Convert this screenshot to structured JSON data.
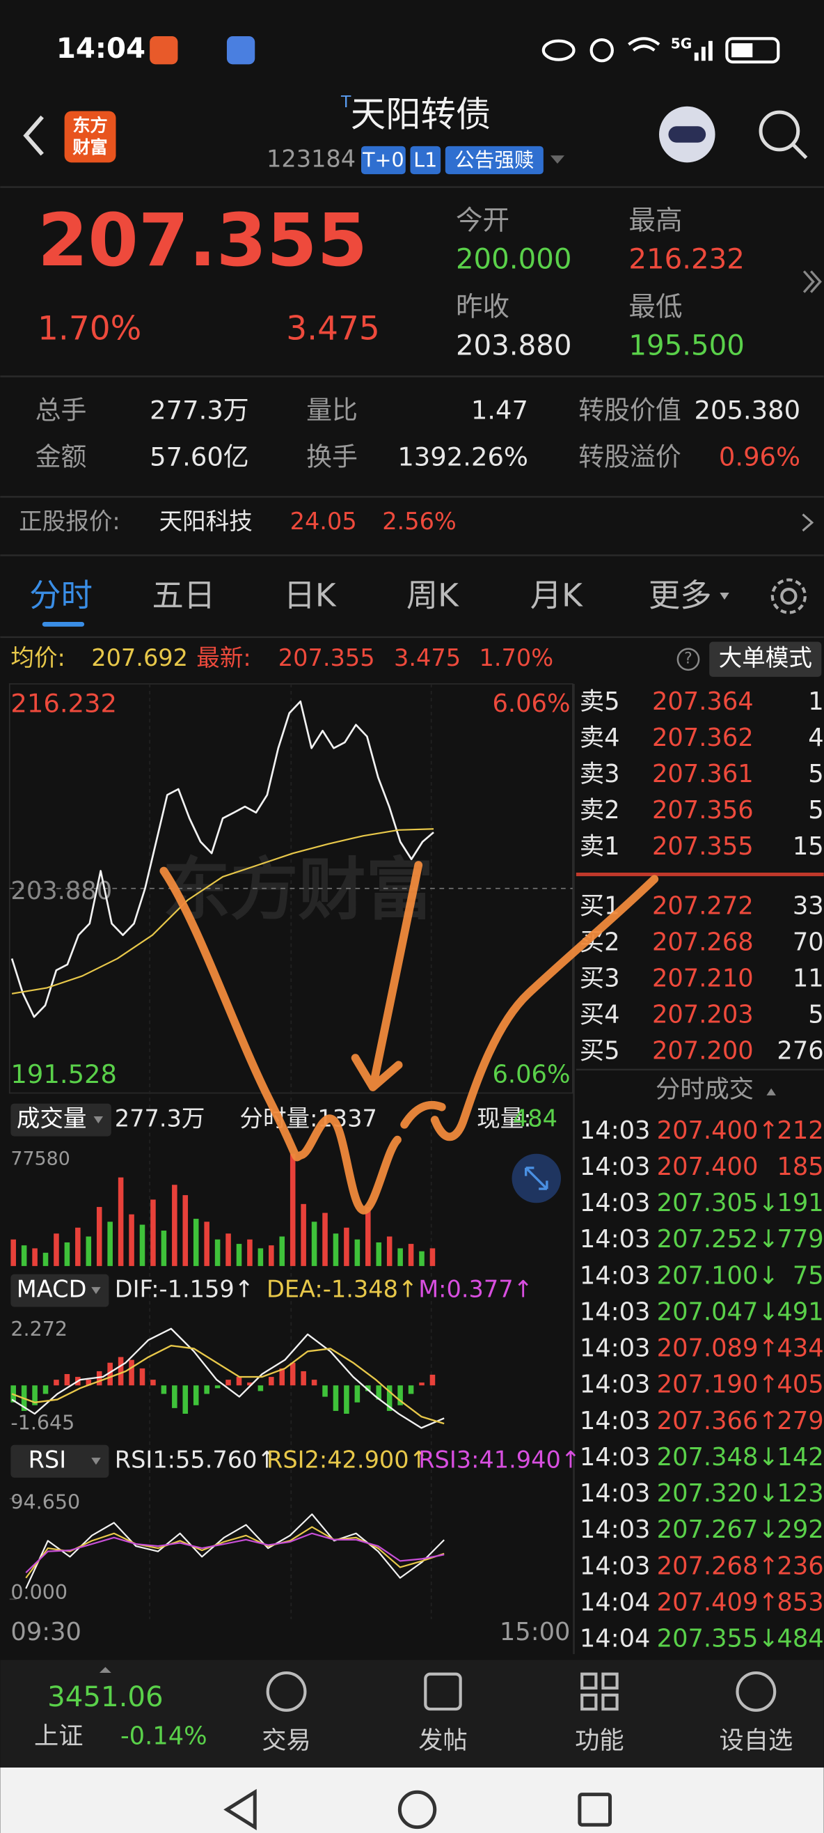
{
  "status_bar": {
    "time": "14:04",
    "network": "5G"
  },
  "header": {
    "logo": [
      "东方",
      "财富"
    ],
    "title_mark": "T",
    "title": "天阳转债",
    "code": "123184",
    "tags": [
      "T+0",
      "L1",
      "公告强赎"
    ]
  },
  "quote": {
    "price": "207.355",
    "change_pct": "1.70%",
    "change": "3.475",
    "stats": [
      {
        "label": "今开",
        "value": "200.000"
      },
      {
        "label": "最高",
        "value": "216.232"
      },
      {
        "label": "昨收",
        "value": "203.880"
      },
      {
        "label": "最低",
        "value": "195.500"
      }
    ],
    "details": [
      {
        "label": "总手",
        "value": "277.3万"
      },
      {
        "label": "量比",
        "value": "1.47"
      },
      {
        "label": "转股价值",
        "value": "205.380"
      },
      {
        "label": "金额",
        "value": "57.60亿"
      },
      {
        "label": "换手",
        "value": "1392.26%"
      },
      {
        "label": "转股溢价",
        "value": "0.96%"
      }
    ],
    "stock": {
      "label": "正股报价:",
      "name": "天阳科技",
      "price": "24.05",
      "pct": "2.56%"
    }
  },
  "tabs": [
    "分时",
    "五日",
    "日K",
    "周K",
    "月K",
    "更多"
  ],
  "chart_header": {
    "avg_label": "均价:",
    "avg": "207.692",
    "latest_label": "最新:",
    "latest": "207.355",
    "change": "3.475",
    "pct": "1.70%",
    "mode": "大单模式"
  },
  "intraday": {
    "ylim": [
      191.528,
      216.232
    ],
    "prev_close": {
      "value": 203.88,
      "label": "203.880"
    },
    "pct_top": "6.06%",
    "pct_bottom": "6.06%",
    "watermark": "东方财富",
    "price_color": "#f2f2f2",
    "avg_color": "#e8c84a",
    "price": [
      199.39,
      197.14,
      195.65,
      196.39,
      198.64,
      199.01,
      200.89,
      201.63,
      205.0,
      201.63,
      200.89,
      201.63,
      203.88,
      206.87,
      209.87,
      210.24,
      208.37,
      206.87,
      206.13,
      208.37,
      208.74,
      209.12,
      208.74,
      209.87,
      212.86,
      215.11,
      215.86,
      212.86,
      213.98,
      212.86,
      213.24,
      214.36,
      213.61,
      210.99,
      209.12,
      206.87,
      205.75,
      206.87,
      207.47
    ],
    "avg": [
      197.14,
      197.52,
      198.27,
      199.39,
      200.89,
      203.13,
      204.63,
      205.38,
      206.13,
      206.73,
      207.25,
      207.62,
      207.69
    ]
  },
  "volume": {
    "label": "成交量",
    "total": "277.3万",
    "minute": "分时量:1337",
    "current_label": "现量:",
    "current": "484",
    "ylim": [
      0,
      77580
    ],
    "up_color": "#e8413a",
    "down_color": "#3fc23a",
    "up": [
      18000,
      null,
      12000,
      null,
      22000,
      null,
      26000,
      null,
      40000,
      null,
      60000,
      35000,
      null,
      45000,
      null,
      55000,
      48000,
      null,
      30000,
      null,
      22000,
      null,
      18000,
      null,
      14000,
      null,
      76000,
      42000,
      null,
      36000,
      null,
      26000,
      null,
      40000,
      null,
      20000,
      null,
      15000,
      null,
      12000
    ],
    "down": [
      null,
      14000,
      null,
      9000,
      null,
      16000,
      null,
      20000,
      null,
      30000,
      null,
      null,
      28000,
      null,
      24000,
      null,
      null,
      32000,
      null,
      18000,
      null,
      15000,
      null,
      12000,
      null,
      20000,
      null,
      null,
      30000,
      null,
      22000,
      null,
      18000,
      null,
      16000,
      null,
      12000,
      null,
      10000,
      null
    ]
  },
  "macd": {
    "label": "MACD",
    "dif": "DIF:-1.159↑",
    "dea": "DEA:-1.348↑",
    "m": "M:0.377↑",
    "ylim": [
      -1.645,
      2.272
    ],
    "up_color": "#e8413a",
    "down_color": "#3fc23a",
    "hist": [
      -0.6,
      -0.9,
      -0.7,
      -0.3,
      0.2,
      0.4,
      0.3,
      0.2,
      0.5,
      0.8,
      1.0,
      0.9,
      0.6,
      0.2,
      -0.3,
      -0.8,
      -1.0,
      -0.7,
      -0.3,
      -0.1,
      0.2,
      0.3,
      0.1,
      -0.2,
      0.3,
      0.6,
      0.8,
      0.5,
      0.2,
      -0.4,
      -0.9,
      -1.0,
      -0.6,
      -0.2,
      -0.5,
      -0.9,
      -0.7,
      -0.3,
      0.1,
      0.377
    ],
    "lines": [
      {
        "color": "#f2f2f2",
        "values": [
          -0.5,
          -1.0,
          -0.3,
          0.2,
          0.3,
          0.8,
          1.6,
          2.0,
          1.2,
          0.2,
          -0.4,
          0.4,
          0.9,
          1.8,
          1.2,
          0.3,
          -0.4,
          -1.0,
          -1.5,
          -1.159
        ]
      },
      {
        "color": "#e8c84a",
        "values": [
          -0.3,
          -0.6,
          -0.5,
          -0.1,
          0.2,
          0.5,
          1.0,
          1.4,
          1.3,
          0.8,
          0.3,
          0.3,
          0.6,
          1.2,
          1.3,
          0.8,
          0.2,
          -0.5,
          -1.1,
          -1.348
        ]
      }
    ]
  },
  "rsi": {
    "label": "RSI",
    "rsi1": "RSI1:55.760↑",
    "rsi2": "RSI2:42.900↑",
    "rsi3": "RSI3:41.940↑",
    "ylim": [
      0,
      94.65
    ],
    "yticks": [
      {
        "value": 94.65,
        "label": "94.650"
      },
      {
        "value": 0,
        "label": "0.000"
      }
    ],
    "lines": [
      {
        "color": "#f2f2f2",
        "values": [
          10,
          55,
          40,
          60,
          72,
          50,
          45,
          62,
          40,
          58,
          70,
          48,
          60,
          80,
          55,
          62,
          45,
          20,
          35,
          55.76
        ]
      },
      {
        "color": "#e8c84a",
        "values": [
          20,
          48,
          45,
          55,
          62,
          52,
          48,
          55,
          46,
          54,
          60,
          50,
          55,
          68,
          56,
          58,
          48,
          30,
          36,
          42.9
        ]
      },
      {
        "color": "#c84fd8",
        "values": [
          25,
          45,
          46,
          52,
          58,
          52,
          50,
          53,
          48,
          52,
          56,
          51,
          54,
          62,
          56,
          56,
          50,
          36,
          38,
          41.94
        ]
      }
    ]
  },
  "time_axis": [
    "09:30",
    "15:00"
  ],
  "order_book": {
    "sells": [
      {
        "label": "卖5",
        "price": "207.364",
        "volume": "1"
      },
      {
        "label": "卖4",
        "price": "207.362",
        "volume": "4"
      },
      {
        "label": "卖3",
        "price": "207.361",
        "volume": "5"
      },
      {
        "label": "卖2",
        "price": "207.356",
        "volume": "5"
      },
      {
        "label": "卖1",
        "price": "207.355",
        "volume": "15"
      }
    ],
    "buys": [
      {
        "label": "买1",
        "price": "207.272",
        "volume": "33"
      },
      {
        "label": "买2",
        "price": "207.268",
        "volume": "70"
      },
      {
        "label": "买3",
        "price": "207.210",
        "volume": "11"
      },
      {
        "label": "买4",
        "price": "207.203",
        "volume": "5"
      },
      {
        "label": "买5",
        "price": "207.200",
        "volume": "276"
      }
    ],
    "trades_title": "分时成交"
  },
  "trades": [
    {
      "time": "14:03",
      "price": "207.400↑",
      "volume": "212",
      "color": "#ee4a3c"
    },
    {
      "time": "14:03",
      "price": "207.400",
      "volume": "185",
      "color": "#ee4a3c"
    },
    {
      "time": "14:03",
      "price": "207.305↓",
      "volume": "191",
      "color": "#5ad14a"
    },
    {
      "time": "14:03",
      "price": "207.252↓",
      "volume": "779",
      "color": "#5ad14a"
    },
    {
      "time": "14:03",
      "price": "207.100↓",
      "volume": "75",
      "color": "#5ad14a"
    },
    {
      "time": "14:03",
      "price": "207.047↓",
      "volume": "491",
      "color": "#5ad14a"
    },
    {
      "time": "14:03",
      "price": "207.089↑",
      "volume": "434",
      "color": "#ee4a3c"
    },
    {
      "time": "14:03",
      "price": "207.190↑",
      "volume": "405",
      "color": "#ee4a3c"
    },
    {
      "time": "14:03",
      "price": "207.366↑",
      "volume": "279",
      "color": "#ee4a3c"
    },
    {
      "time": "14:03",
      "price": "207.348↓",
      "volume": "142",
      "color": "#5ad14a"
    },
    {
      "time": "14:03",
      "price": "207.320↓",
      "volume": "123",
      "color": "#5ad14a"
    },
    {
      "time": "14:03",
      "price": "207.267↓",
      "volume": "292",
      "color": "#5ad14a"
    },
    {
      "time": "14:03",
      "price": "207.268↑",
      "volume": "236",
      "color": "#ee4a3c"
    },
    {
      "time": "14:04",
      "price": "207.409↑",
      "volume": "853",
      "color": "#ee4a3c"
    },
    {
      "time": "14:04",
      "price": "207.355↓",
      "volume": "484",
      "color": "#5ad14a"
    }
  ],
  "bottom_nav": {
    "index": {
      "value": "3451.06",
      "name": "上证",
      "pct": "-0.14%"
    },
    "items": [
      "交易",
      "发帖",
      "功能",
      "设自选"
    ]
  }
}
